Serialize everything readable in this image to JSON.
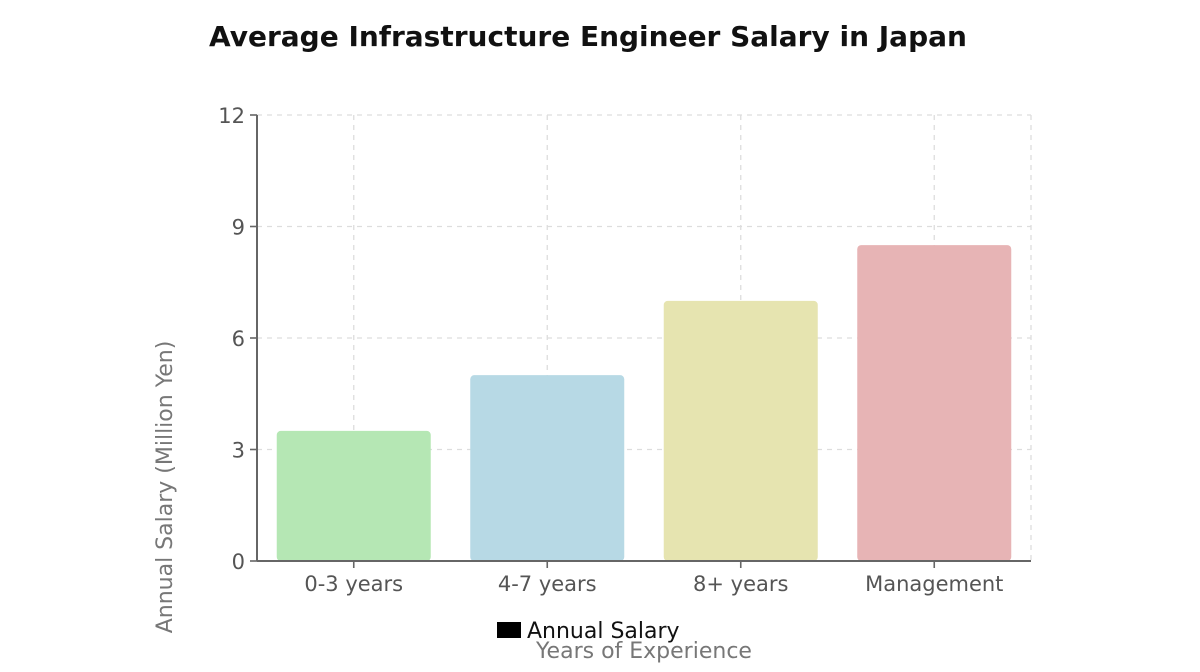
{
  "chart_data": {
    "type": "bar",
    "title": "Average Infrastructure Engineer Salary in Japan",
    "xlabel": "Years of Experience",
    "ylabel": "Annual Salary (Million Yen)",
    "categories": [
      "0-3 years",
      "4-7 years",
      "8+ years",
      "Management"
    ],
    "series": [
      {
        "name": "Annual Salary",
        "values": [
          3.5,
          5.0,
          7.0,
          8.5
        ]
      }
    ],
    "ylim": [
      0,
      12
    ],
    "yticks": [
      "0",
      "3",
      "6",
      "9",
      "12"
    ],
    "grid": true,
    "legend_position": "bottom",
    "bar_colors": [
      "#b5e7b4",
      "#b7d9e5",
      "#e6e4b0",
      "#e7b4b5"
    ],
    "legend_marker_color": "#000000"
  }
}
